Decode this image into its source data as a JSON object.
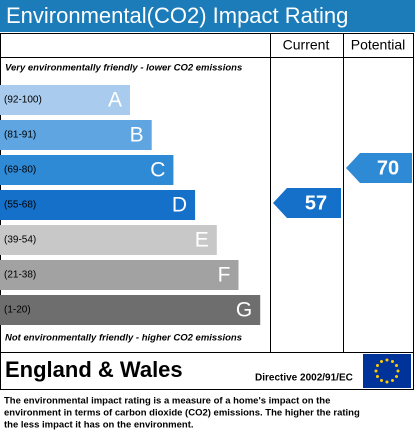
{
  "title": "Environmental(CO2) Impact Rating",
  "headers": {
    "current": "Current",
    "potential": "Potential"
  },
  "top_note": "Very environmentally friendly - lower CO2 emissions",
  "bottom_note": "Not environmentally friendly - higher CO2 emissions",
  "bands": [
    {
      "range": "(92-100)",
      "letter": "A",
      "color": "#a9cbed"
    },
    {
      "range": "(81-91)",
      "letter": "B",
      "color": "#5ea5e2"
    },
    {
      "range": "(69-80)",
      "letter": "C",
      "color": "#2f8ad6"
    },
    {
      "range": "(55-68)",
      "letter": "D",
      "color": "#1570c9"
    },
    {
      "range": "(39-54)",
      "letter": "E",
      "color": "#c8c8c8"
    },
    {
      "range": "(21-38)",
      "letter": "F",
      "color": "#a2a2a2"
    },
    {
      "range": "(1-20)",
      "letter": "G",
      "color": "#6e6e6e"
    }
  ],
  "current": 57,
  "potential": 70,
  "footer": {
    "region": "England & Wales",
    "directive": "Directive 2002/91/EC"
  },
  "description": [
    "The environmental impact rating is a measure of a home's impact on the",
    "environment in terms of carbon dioxide (CO2) emissions. The higher the rating",
    "the less impact it has on the environment."
  ]
}
